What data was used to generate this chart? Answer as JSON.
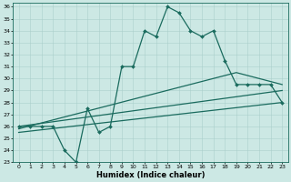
{
  "xlabel": "Humidex (Indice chaleur)",
  "bg_color": "#cce8e4",
  "line_color": "#1a6b5e",
  "grid_color": "#aacfcb",
  "xlim": [
    -0.5,
    23.5
  ],
  "ylim": [
    23,
    36.3
  ],
  "yticks": [
    23,
    24,
    25,
    26,
    27,
    28,
    29,
    30,
    31,
    32,
    33,
    34,
    35,
    36
  ],
  "xticks": [
    0,
    1,
    2,
    3,
    4,
    5,
    6,
    7,
    8,
    9,
    10,
    11,
    12,
    13,
    14,
    15,
    16,
    17,
    18,
    19,
    20,
    21,
    22,
    23
  ],
  "line1_x": [
    0,
    1,
    2,
    3,
    4,
    5,
    6,
    7,
    8,
    9,
    10,
    11,
    12,
    13,
    14,
    15,
    16,
    17,
    18,
    19,
    20,
    21,
    22,
    23
  ],
  "line1_y": [
    26,
    26,
    26,
    26,
    24,
    23,
    27.5,
    25.5,
    26,
    31,
    31,
    34,
    33.5,
    36,
    35.5,
    34,
    33.5,
    34,
    31.5,
    29.5,
    29.5,
    29.5,
    29.5,
    28
  ],
  "line2_x": [
    0,
    23
  ],
  "line2_y": [
    25.5,
    28.0
  ],
  "line3_x": [
    0,
    23
  ],
  "line3_y": [
    26.0,
    29.0
  ],
  "line4_x": [
    0,
    19,
    23
  ],
  "line4_y": [
    25.8,
    30.5,
    29.5
  ],
  "marker": "D",
  "markersize": 2.0,
  "linewidth": 0.9,
  "tick_fontsize": 4.5,
  "label_fontsize": 6.0
}
